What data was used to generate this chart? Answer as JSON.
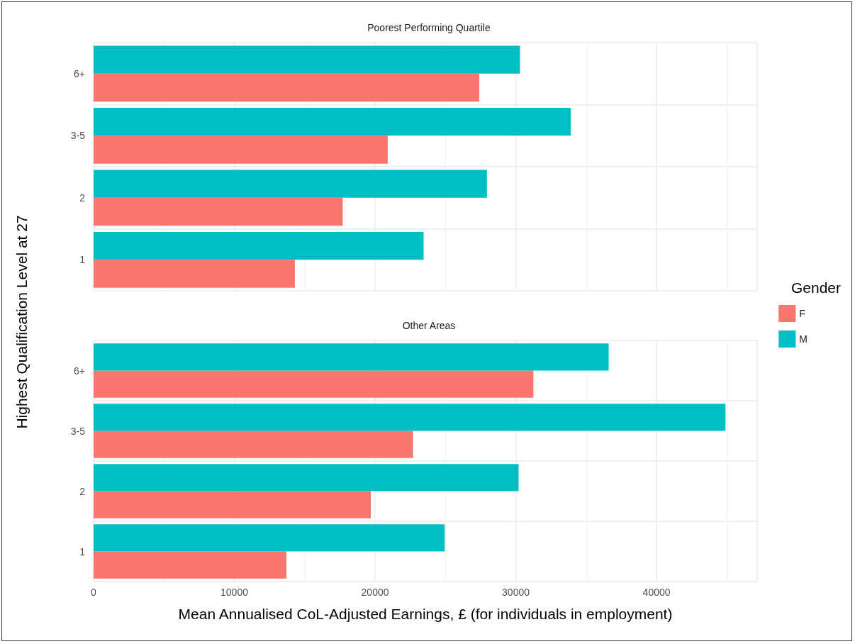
{
  "chart_data": [
    {
      "type": "bar",
      "orientation": "horizontal",
      "title": "Poorest Performing Quartile",
      "ylabel": "Highest Qualification Level at 27",
      "legend_title": "Gender",
      "legend": "right",
      "grid": true,
      "tick_labels": "y",
      "categories": [
        "6+",
        "3-5",
        "2",
        "1"
      ],
      "xlim": [
        0,
        47150
      ],
      "xticks": [
        0,
        10000,
        20000,
        30000,
        40000
      ],
      "series": [
        {
          "name": "F",
          "color": "#f8766d",
          "values": [
            27400,
            20900,
            17700,
            14300
          ]
        },
        {
          "name": "M",
          "color": "#00bfc4",
          "values": [
            30300,
            33900,
            27950,
            23450
          ]
        }
      ]
    },
    {
      "type": "bar",
      "orientation": "horizontal",
      "title": "Other Areas",
      "xlabel": "Mean Annualised CoL-Adjusted Earnings, £ (for individuals in employment)",
      "grid": true,
      "categories": [
        "6+",
        "3-5",
        "2",
        "1"
      ],
      "xlim": [
        0,
        47150
      ],
      "xticks": [
        0,
        10000,
        20000,
        30000,
        40000
      ],
      "series": [
        {
          "name": "F",
          "color": "#f8766d",
          "values": [
            31250,
            22700,
            19700,
            13700
          ]
        },
        {
          "name": "M",
          "color": "#00bfc4",
          "values": [
            36600,
            44900,
            30200,
            24950
          ]
        }
      ]
    }
  ]
}
